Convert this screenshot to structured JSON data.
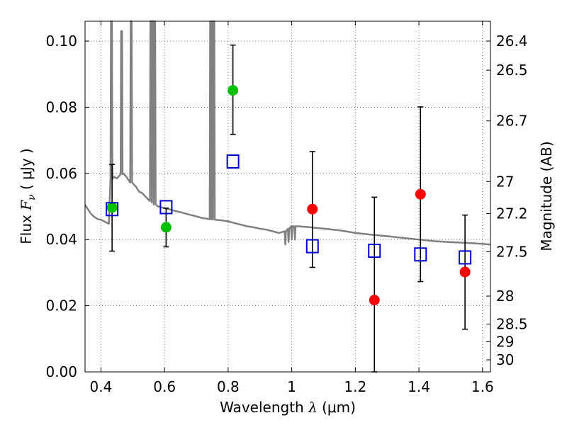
{
  "chart_data": {
    "type": "scatter",
    "title": "",
    "xlabel": "Wavelength  λ (μm)",
    "ylabel": "Flux  F_ν  ( μJy )",
    "ylabel_parts": {
      "prefix": "Flux  ",
      "symbol": "F",
      "subscript": "ν",
      "suffix": "  ( μJy )"
    },
    "xlabel_parts": {
      "prefix": "Wavelength  ",
      "symbol": "λ",
      "suffix": " (μm)"
    },
    "ylabel_right": "Magnitude (AB)",
    "xlim": [
      0.35,
      1.625
    ],
    "ylim": [
      0.0,
      0.106
    ],
    "grid": true,
    "grid_style": "dotted",
    "xticks": [
      0.4,
      0.6,
      0.8,
      1.0,
      1.2,
      1.4,
      1.6
    ],
    "xtick_labels": [
      "0.4",
      "0.6",
      "0.8",
      "1",
      "1.2",
      "1.4",
      "1.6"
    ],
    "yticks": [
      0.0,
      0.02,
      0.04,
      0.06,
      0.08,
      0.1
    ],
    "ytick_labels": [
      "0.00",
      "0.02",
      "0.04",
      "0.06",
      "0.08",
      "0.10"
    ],
    "right_axis_ticks": [
      {
        "label": "26.4",
        "mag": 26.4
      },
      {
        "label": "26.5",
        "mag": 26.5
      },
      {
        "label": "26.7",
        "mag": 26.7
      },
      {
        "label": "27",
        "mag": 27.0
      },
      {
        "label": "27.2",
        "mag": 27.2
      },
      {
        "label": "27.5",
        "mag": 27.5
      },
      {
        "label": "28",
        "mag": 28.0
      },
      {
        "label": "28.5",
        "mag": 28.5
      },
      {
        "label": "29",
        "mag": 29.0
      },
      {
        "label": "30",
        "mag": 30.0
      }
    ],
    "series": [
      {
        "kind": "line",
        "color": "#808080",
        "points": [
          [
            0.35,
            0.0505
          ],
          [
            0.36,
            0.049
          ],
          [
            0.37,
            0.0476
          ],
          [
            0.38,
            0.0468
          ],
          [
            0.39,
            0.0462
          ],
          [
            0.4,
            0.046
          ],
          [
            0.41,
            0.0455
          ],
          [
            0.42,
            0.045
          ],
          [
            0.425,
            0.0448
          ],
          [
            0.43,
            0.058
          ],
          [
            0.44,
            0.059
          ],
          [
            0.45,
            0.0585
          ],
          [
            0.46,
            0.0595
          ],
          [
            0.47,
            0.06
          ],
          [
            0.48,
            0.059
          ],
          [
            0.49,
            0.0575
          ],
          [
            0.5,
            0.057
          ],
          [
            0.51,
            0.056
          ],
          [
            0.52,
            0.0545
          ],
          [
            0.53,
            0.054
          ],
          [
            0.54,
            0.053
          ],
          [
            0.55,
            0.052
          ],
          [
            0.56,
            0.0515
          ],
          [
            0.57,
            0.0505
          ],
          [
            0.58,
            0.05
          ],
          [
            0.6,
            0.0495
          ],
          [
            0.62,
            0.049
          ],
          [
            0.64,
            0.0485
          ],
          [
            0.66,
            0.048
          ],
          [
            0.68,
            0.0475
          ],
          [
            0.7,
            0.047
          ],
          [
            0.72,
            0.0465
          ],
          [
            0.74,
            0.0462
          ],
          [
            0.76,
            0.046
          ],
          [
            0.78,
            0.0458
          ],
          [
            0.8,
            0.0455
          ],
          [
            0.82,
            0.045
          ],
          [
            0.84,
            0.0445
          ],
          [
            0.86,
            0.044
          ],
          [
            0.88,
            0.0437
          ],
          [
            0.9,
            0.0433
          ],
          [
            0.92,
            0.043
          ],
          [
            0.94,
            0.0425
          ],
          [
            0.96,
            0.042
          ],
          [
            0.98,
            0.0425
          ],
          [
            1.0,
            0.044
          ],
          [
            1.02,
            0.044
          ],
          [
            1.05,
            0.0438
          ],
          [
            1.1,
            0.0433
          ],
          [
            1.15,
            0.0428
          ],
          [
            1.2,
            0.042
          ],
          [
            1.25,
            0.0415
          ],
          [
            1.3,
            0.041
          ],
          [
            1.35,
            0.0405
          ],
          [
            1.4,
            0.04
          ],
          [
            1.45,
            0.0395
          ],
          [
            1.5,
            0.0392
          ],
          [
            1.55,
            0.039
          ],
          [
            1.6,
            0.0387
          ],
          [
            1.625,
            0.0385
          ]
        ],
        "emission_lines": [
          0.433,
          0.465,
          0.495,
          0.557,
          0.563,
          0.569,
          0.745,
          0.75,
          0.755
        ],
        "emission_peaks": [
          0.106,
          0.103,
          0.106,
          0.106,
          0.106,
          0.106,
          0.106,
          0.106,
          0.106
        ],
        "absorption_dips": [
          0.98,
          0.99,
          1.0,
          1.01
        ]
      },
      {
        "kind": "markers",
        "marker": "circle",
        "color": "#00c000",
        "points": [
          {
            "x": 0.435,
            "y": 0.0497,
            "yerr": [
              0.0365,
              0.0627
            ]
          },
          {
            "x": 0.605,
            "y": 0.0437,
            "yerr": [
              0.0378,
              0.0495
            ]
          },
          {
            "x": 0.815,
            "y": 0.0851,
            "yerr": [
              0.0718,
              0.0988
            ]
          }
        ]
      },
      {
        "kind": "markers",
        "marker": "circle",
        "color": "#ff0000",
        "points": [
          {
            "x": 1.065,
            "y": 0.0492,
            "yerr": [
              0.0316,
              0.0666
            ]
          },
          {
            "x": 1.26,
            "y": 0.0217,
            "yerr": [
              0.0,
              0.0528
            ]
          },
          {
            "x": 1.405,
            "y": 0.0537,
            "yerr": [
              0.0273,
              0.0801
            ]
          },
          {
            "x": 1.545,
            "y": 0.0302,
            "yerr": [
              0.0129,
              0.0474
            ]
          }
        ]
      },
      {
        "kind": "markers",
        "marker": "square",
        "color": "#0000cc",
        "points": [
          {
            "x": 0.435,
            "y": 0.0492
          },
          {
            "x": 0.605,
            "y": 0.0498
          },
          {
            "x": 0.815,
            "y": 0.0636
          },
          {
            "x": 1.065,
            "y": 0.038
          },
          {
            "x": 1.26,
            "y": 0.0366
          },
          {
            "x": 1.405,
            "y": 0.0355
          },
          {
            "x": 1.545,
            "y": 0.0346
          }
        ]
      }
    ]
  }
}
